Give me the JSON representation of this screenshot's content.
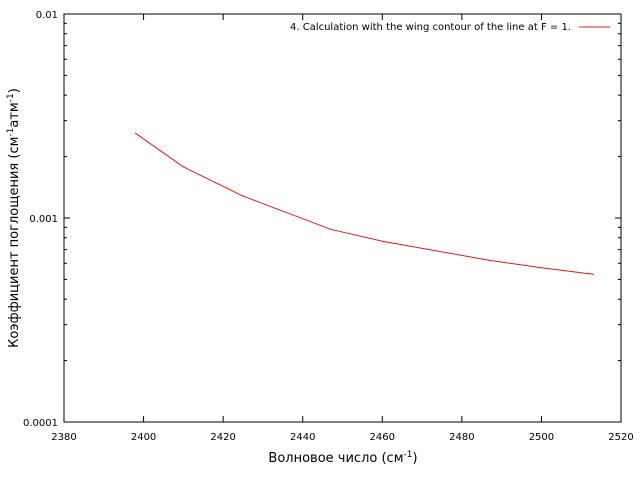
{
  "chart_data": {
    "type": "line",
    "title": "",
    "xlabel": "Волновое число (см",
    "xlabel_sup": "-1",
    "xlabel_end": ")",
    "ylabel": "Коэффициент поглощения (см",
    "ylabel_sup1": "-1",
    "ylabel_mid": "атм",
    "ylabel_sup2": "-1",
    "ylabel_end": ")",
    "xlim": [
      2380,
      2520
    ],
    "ylim": [
      0.0001,
      0.01
    ],
    "yscale": "log",
    "grid": false,
    "legend_position": "top-right",
    "x_ticks": [
      2380,
      2400,
      2420,
      2440,
      2460,
      2480,
      2500,
      2520
    ],
    "x_tick_labels": [
      "2380",
      "2400",
      "2420",
      "2440",
      "2460",
      "2480",
      "2500",
      "2520"
    ],
    "y_ticks": [
      0.0001,
      0.001,
      0.01
    ],
    "y_tick_labels": [
      "0.0001",
      "0.001",
      "0.01"
    ],
    "series": [
      {
        "name": "4. Calculation with the wing contour of the line at F = 1.",
        "color": "#e41a1c",
        "x": [
          2398,
          2410,
          2425,
          2447,
          2460,
          2487,
          2500,
          2513
        ],
        "y": [
          0.0026,
          0.00178,
          0.00128,
          0.00088,
          0.00077,
          0.00062,
          0.00057,
          0.00053
        ]
      }
    ]
  }
}
